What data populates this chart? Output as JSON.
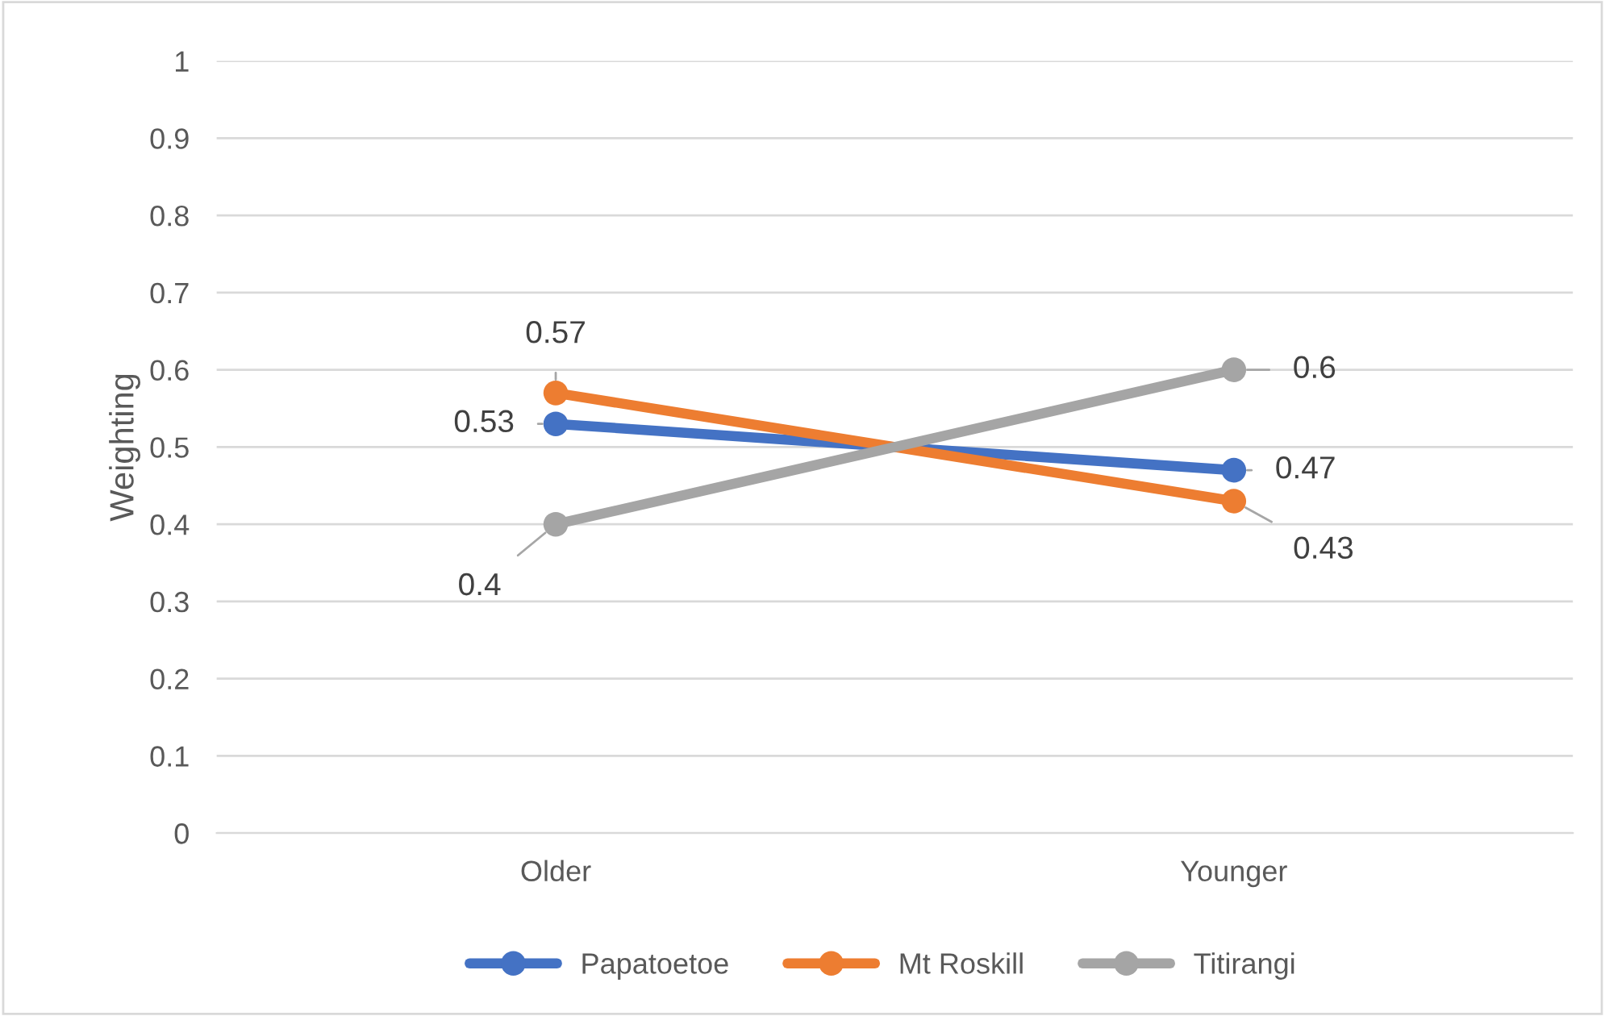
{
  "chart_data": {
    "type": "line",
    "ylabel": "Weighting",
    "categories": [
      "Older",
      "Younger"
    ],
    "series": [
      {
        "name": "Papatoetoe",
        "color": "#4472c4",
        "values": [
          0.53,
          0.47
        ]
      },
      {
        "name": "Mt Roskill",
        "color": "#ed7d31",
        "values": [
          0.57,
          0.43
        ]
      },
      {
        "name": "Titirangi",
        "color": "#a5a5a5",
        "values": [
          0.4,
          0.6
        ]
      }
    ],
    "ylim": [
      0,
      1
    ],
    "yticks": [
      0,
      0.1,
      0.2,
      0.3,
      0.4,
      0.5,
      0.6,
      0.7,
      0.8,
      0.9,
      1
    ],
    "grid": "y",
    "legend": "bottom",
    "marker": "circle",
    "line_style": "solid",
    "data_labels": true
  }
}
